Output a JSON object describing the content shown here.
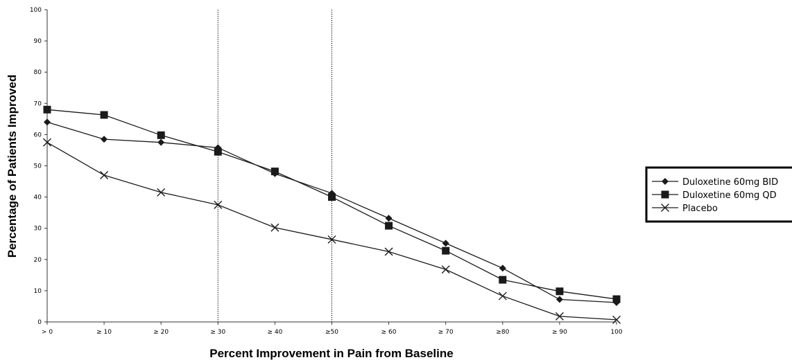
{
  "chart_data": {
    "type": "line",
    "xlabel": "Percent Improvement in Pain from Baseline",
    "ylabel": "Percentage of Patients Improved",
    "categories": [
      "> 0",
      "≥ 10",
      "≥ 20",
      "≥ 30",
      "≥ 40",
      "≥50",
      "≥ 60",
      "≥ 70",
      "≥80",
      "≥ 90",
      "100"
    ],
    "ylim": [
      0,
      100
    ],
    "yticks": [
      0,
      10,
      20,
      30,
      40,
      50,
      60,
      70,
      80,
      90,
      100
    ],
    "grid": false,
    "reference_lines_at": [
      "≥ 30",
      "≥50"
    ],
    "legend_position": "right",
    "series": [
      {
        "name": "Duloxetine 60mg BID",
        "marker": "diamond",
        "color": "#1a1a1a",
        "values": [
          64,
          58.5,
          57.5,
          55.8,
          47.5,
          41.2,
          33.2,
          25.2,
          17.2,
          7.2,
          6.2
        ]
      },
      {
        "name": "Duloxetine 60mg QD",
        "marker": "square",
        "color": "#1a1a1a",
        "values": [
          68,
          66.3,
          59.8,
          54.5,
          48.2,
          40,
          30.8,
          22.8,
          13.5,
          9.8,
          7.3
        ]
      },
      {
        "name": "Placebo",
        "marker": "x",
        "color": "#1a1a1a",
        "values": [
          57.5,
          47,
          41.5,
          37.5,
          30.2,
          26.4,
          22.5,
          16.8,
          8.3,
          1.8,
          0.7
        ]
      }
    ]
  }
}
